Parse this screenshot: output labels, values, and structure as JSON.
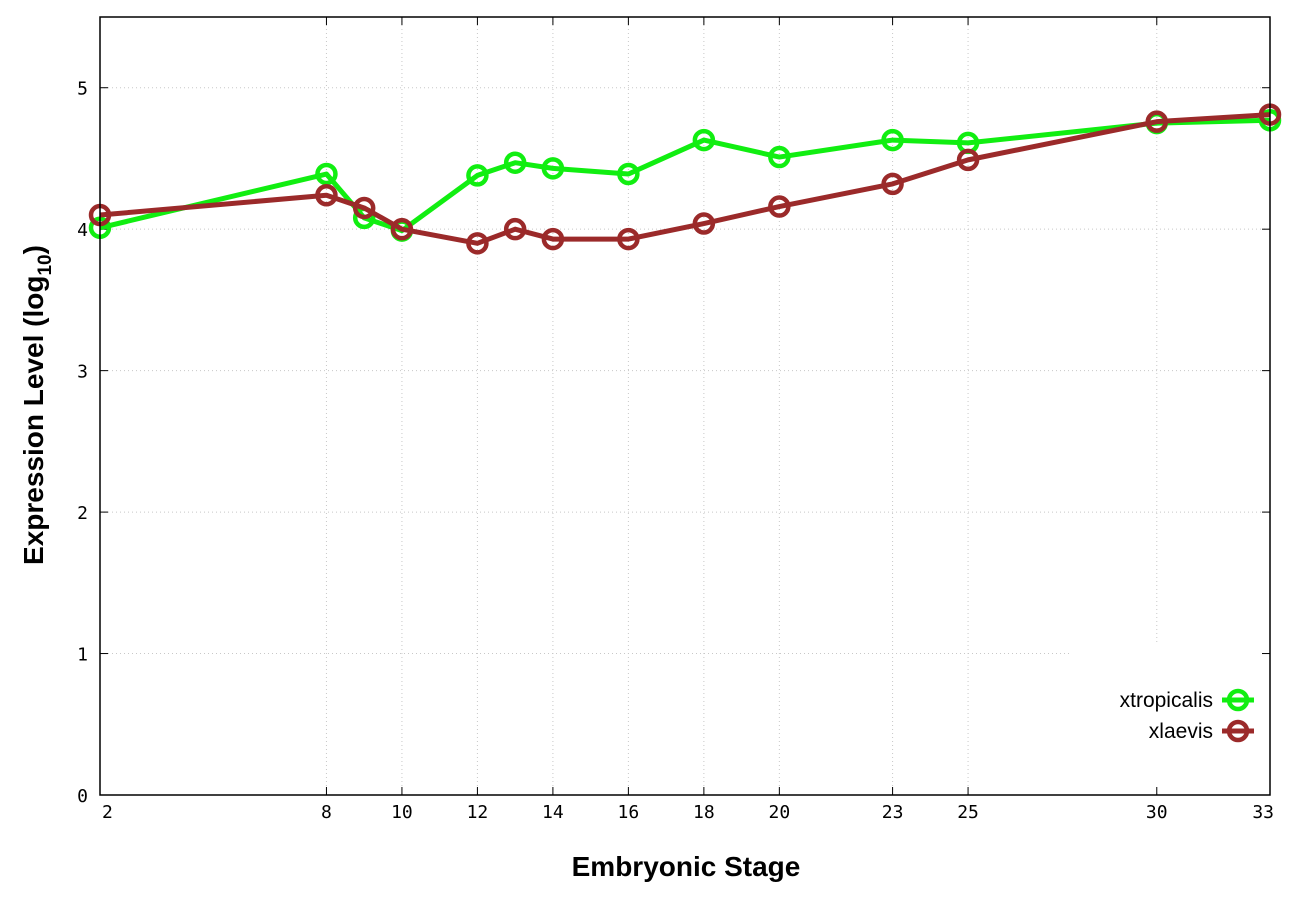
{
  "chart_data": {
    "type": "line",
    "xlabel": "Embryonic Stage",
    "ylabel": "Expression Level (log",
    "ylabel_subscript": "10",
    "ylabel_suffix": ")",
    "xlim": [
      2,
      33
    ],
    "ylim": [
      0,
      5.5
    ],
    "x_ticks": [
      "2",
      "8",
      "10",
      "12",
      "14",
      "16",
      "18",
      "20",
      "23",
      "25",
      "30",
      "33"
    ],
    "y_ticks": [
      "0",
      "1",
      "2",
      "3",
      "4",
      "5"
    ],
    "categories": [
      "2",
      "8",
      "9",
      "10",
      "12",
      "13",
      "14",
      "16",
      "18",
      "20",
      "23",
      "25",
      "30",
      "33"
    ],
    "grid": true,
    "legend_position": "bottom-right",
    "series": [
      {
        "name": "xtropicalis",
        "color": "#11ee11",
        "values": [
          4.01,
          4.39,
          4.08,
          3.99,
          4.38,
          4.47,
          4.43,
          4.39,
          4.63,
          4.51,
          4.63,
          4.61,
          4.75,
          4.77
        ]
      },
      {
        "name": "xlaevis",
        "color": "#9b2a2a",
        "values": [
          4.1,
          4.24,
          4.15,
          4.0,
          3.9,
          4.0,
          3.93,
          3.93,
          4.04,
          4.16,
          4.32,
          4.49,
          4.76,
          4.81
        ]
      }
    ]
  }
}
